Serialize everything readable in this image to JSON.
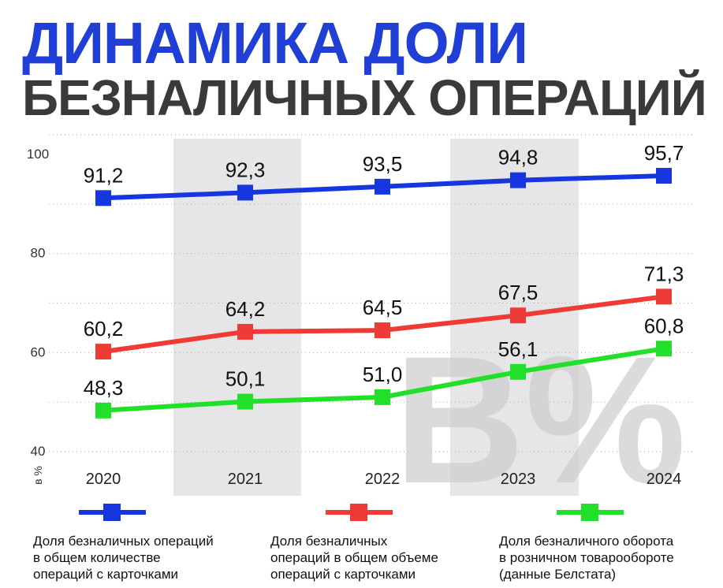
{
  "header": {
    "title_line1": "ДИНАМИКА ДОЛИ",
    "title_line2": "БЕЗНАЛИЧНЫХ ОПЕРАЦИЙ"
  },
  "watermark": "B%",
  "chart_data": {
    "type": "line",
    "categories": [
      "2020",
      "2021",
      "2022",
      "2023",
      "2024"
    ],
    "ylabel": "в %",
    "ylim": [
      40,
      100
    ],
    "yticks": [
      "40",
      "60",
      "80",
      "100"
    ],
    "grid": true,
    "series": [
      {
        "name": "Доля безналичных операций\nв общем количестве\nопераций с карточками",
        "color": "#1636e0",
        "values": [
          91.2,
          92.3,
          93.5,
          94.8,
          95.7
        ],
        "labels": [
          "91,2",
          "92,3",
          "93,5",
          "94,8",
          "95,7"
        ]
      },
      {
        "name": "Доля безналичных\nопераций в общем объеме\nопераций с карточками",
        "color": "#ef3b36",
        "values": [
          60.2,
          64.2,
          64.5,
          67.5,
          71.3
        ],
        "labels": [
          "60,2",
          "64,2",
          "64,5",
          "67,5",
          "71,3"
        ]
      },
      {
        "name": "Доля безналичного оборота\nв розничном товарообороте\n(данные Белстата)",
        "color": "#22e029",
        "values": [
          48.3,
          50.1,
          51.0,
          56.1,
          60.8
        ],
        "labels": [
          "48,3",
          "50,1",
          "51,0",
          "56,1",
          "60,8"
        ]
      }
    ]
  }
}
